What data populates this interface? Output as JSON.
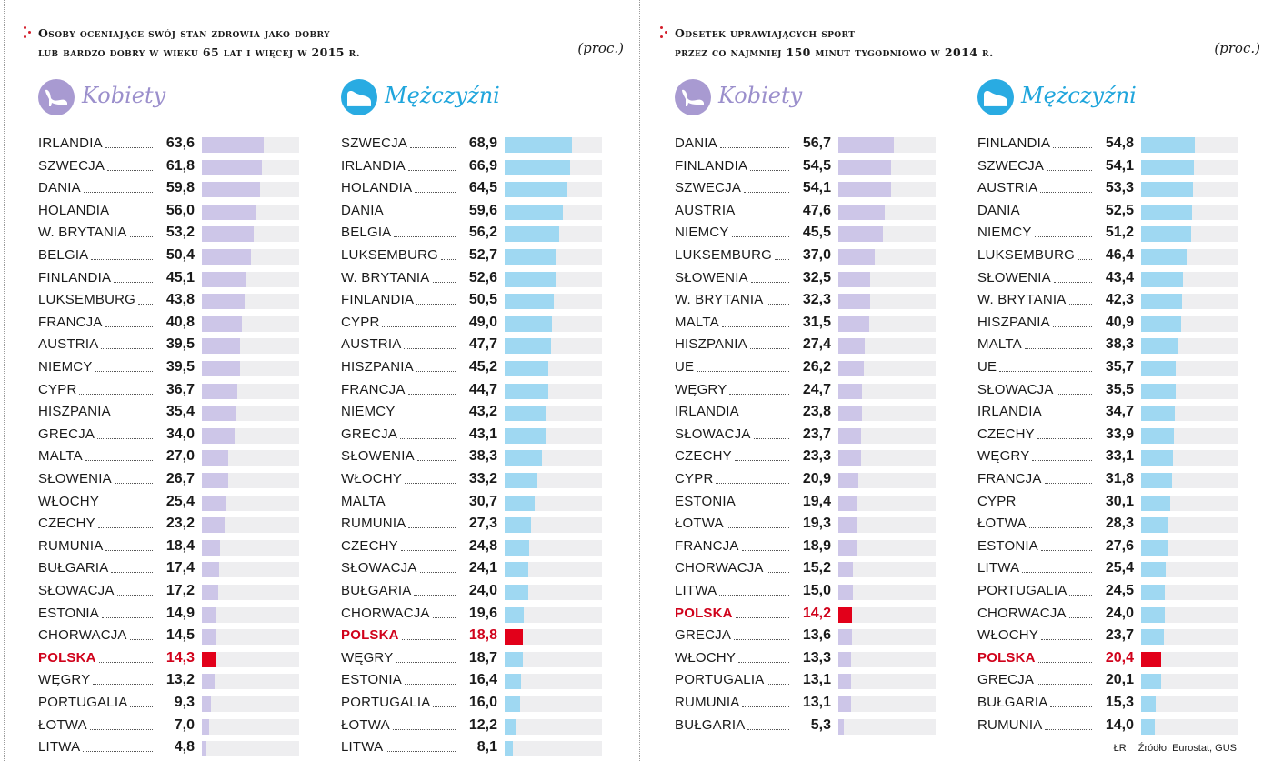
{
  "unit": "(proc.)",
  "colors": {
    "women_bar": "#cdc6e8",
    "men_bar": "#9fd8f2",
    "poland_bar": "#e2001a",
    "accent": "#d31e2a"
  },
  "footer": {
    "author": "ŁR",
    "source": "Źródło: Eurostat, GUS"
  },
  "chart_data": [
    {
      "type": "bar",
      "title": "Osoby oceniające swój stan zdrowia jako dobry lub bardzo dobry w wieku 65 lat i więcej w 2015 r.",
      "title_lines": [
        "Osoby oceniające swój stan zdrowia jako dobry",
        "lub bardzo dobry w wieku 65 lat i więcej w 2015 r."
      ],
      "unit": "(proc.)",
      "xlim": [
        0,
        100
      ],
      "highlight": "POLSKA",
      "series": [
        {
          "name": "Kobiety",
          "icon": "women-shoe-icon",
          "categories": [
            "IRLANDIA",
            "SZWECJA",
            "DANIA",
            "HOLANDIA",
            "W. BRYTANIA",
            "BELGIA",
            "FINLANDIA",
            "LUKSEMBURG",
            "FRANCJA",
            "AUSTRIA",
            "NIEMCY",
            "CYPR",
            "HISZPANIA",
            "GRECJA",
            "MALTA",
            "SŁOWENIA",
            "WŁOCHY",
            "CZECHY",
            "RUMUNIA",
            "BUŁGARIA",
            "SŁOWACJA",
            "ESTONIA",
            "CHORWACJA",
            "POLSKA",
            "WĘGRY",
            "PORTUGALIA",
            "ŁOTWA",
            "LITWA"
          ],
          "values": [
            63.6,
            61.8,
            59.8,
            56.0,
            53.2,
            50.4,
            45.1,
            43.8,
            40.8,
            39.5,
            39.5,
            36.7,
            35.4,
            34.0,
            27.0,
            26.7,
            25.4,
            23.2,
            18.4,
            17.4,
            17.2,
            14.9,
            14.5,
            14.3,
            13.2,
            9.3,
            7.0,
            4.8
          ],
          "labels": [
            "63,6",
            "61,8",
            "59,8",
            "56,0",
            "53,2",
            "50,4",
            "45,1",
            "43,8",
            "40,8",
            "39,5",
            "39,5",
            "36,7",
            "35,4",
            "34,0",
            "27,0",
            "26,7",
            "25,4",
            "23,2",
            "18,4",
            "17,4",
            "17,2",
            "14,9",
            "14,5",
            "14,3",
            "13,2",
            "9,3",
            "7,0",
            "4,8"
          ]
        },
        {
          "name": "Mężczyźni",
          "icon": "men-shoe-icon",
          "categories": [
            "SZWECJA",
            "IRLANDIA",
            "HOLANDIA",
            "DANIA",
            "BELGIA",
            "LUKSEMBURG",
            "W. BRYTANIA",
            "FINLANDIA",
            "CYPR",
            "AUSTRIA",
            "HISZPANIA",
            "FRANCJA",
            "NIEMCY",
            "GRECJA",
            "SŁOWENIA",
            "WŁOCHY",
            "MALTA",
            "RUMUNIA",
            "CZECHY",
            "SŁOWACJA",
            "BUŁGARIA",
            "CHORWACJA",
            "POLSKA",
            "WĘGRY",
            "ESTONIA",
            "PORTUGALIA",
            "ŁOTWA",
            "LITWA"
          ],
          "values": [
            68.9,
            66.9,
            64.5,
            59.6,
            56.2,
            52.7,
            52.6,
            50.5,
            49.0,
            47.7,
            45.2,
            44.7,
            43.2,
            43.1,
            38.3,
            33.2,
            30.7,
            27.3,
            24.8,
            24.1,
            24.0,
            19.6,
            18.8,
            18.7,
            16.4,
            16.0,
            12.2,
            8.1
          ],
          "labels": [
            "68,9",
            "66,9",
            "64,5",
            "59,6",
            "56,2",
            "52,7",
            "52,6",
            "50,5",
            "49,0",
            "47,7",
            "45,2",
            "44,7",
            "43,2",
            "43,1",
            "38,3",
            "33,2",
            "30,7",
            "27,3",
            "24,8",
            "24,1",
            "24,0",
            "19,6",
            "18,8",
            "18,7",
            "16,4",
            "16,0",
            "12,2",
            "8,1"
          ]
        }
      ]
    },
    {
      "type": "bar",
      "title": "Odsetek uprawiających sport przez co najmniej 150 minut tygodniowo w 2014 r.",
      "title_lines": [
        "Odsetek uprawiających sport",
        "przez co najmniej 150 minut tygodniowo w 2014 r."
      ],
      "unit": "(proc.)",
      "xlim": [
        0,
        100
      ],
      "highlight": "POLSKA",
      "series": [
        {
          "name": "Kobiety",
          "icon": "women-shoe-icon",
          "categories": [
            "DANIA",
            "FINLANDIA",
            "SZWECJA",
            "AUSTRIA",
            "NIEMCY",
            "LUKSEMBURG",
            "SŁOWENIA",
            "W. BRYTANIA",
            "MALTA",
            "HISZPANIA",
            "UE",
            "WĘGRY",
            "IRLANDIA",
            "SŁOWACJA",
            "CZECHY",
            "CYPR",
            "ESTONIA",
            "ŁOTWA",
            "FRANCJA",
            "CHORWACJA",
            "LITWA",
            "POLSKA",
            "GRECJA",
            "WŁOCHY",
            "PORTUGALIA",
            "RUMUNIA",
            "BUŁGARIA"
          ],
          "values": [
            56.7,
            54.5,
            54.1,
            47.6,
            45.5,
            37.0,
            32.5,
            32.3,
            31.5,
            27.4,
            26.2,
            24.7,
            23.8,
            23.7,
            23.3,
            20.9,
            19.4,
            19.3,
            18.9,
            15.2,
            15.0,
            14.2,
            13.6,
            13.3,
            13.1,
            13.1,
            5.3
          ],
          "labels": [
            "56,7",
            "54,5",
            "54,1",
            "47,6",
            "45,5",
            "37,0",
            "32,5",
            "32,3",
            "31,5",
            "27,4",
            "26,2",
            "24,7",
            "23,8",
            "23,7",
            "23,3",
            "20,9",
            "19,4",
            "19,3",
            "18,9",
            "15,2",
            "15,0",
            "14,2",
            "13,6",
            "13,3",
            "13,1",
            "13,1",
            "5,3"
          ]
        },
        {
          "name": "Mężczyźni",
          "icon": "men-shoe-icon",
          "categories": [
            "FINLANDIA",
            "SZWECJA",
            "AUSTRIA",
            "DANIA",
            "NIEMCY",
            "LUKSEMBURG",
            "SŁOWENIA",
            "W. BRYTANIA",
            "HISZPANIA",
            "MALTA",
            "UE",
            "SŁOWACJA",
            "IRLANDIA",
            "CZECHY",
            "WĘGRY",
            "FRANCJA",
            "CYPR",
            "ŁOTWA",
            "ESTONIA",
            "LITWA",
            "PORTUGALIA",
            "CHORWACJA",
            "WŁOCHY",
            "POLSKA",
            "GRECJA",
            "BUŁGARIA",
            "RUMUNIA"
          ],
          "values": [
            54.8,
            54.1,
            53.3,
            52.5,
            51.2,
            46.4,
            43.4,
            42.3,
            40.9,
            38.3,
            35.7,
            35.5,
            34.7,
            33.9,
            33.1,
            31.8,
            30.1,
            28.3,
            27.6,
            25.4,
            24.5,
            24.0,
            23.7,
            20.4,
            20.1,
            15.3,
            14.0
          ],
          "labels": [
            "54,8",
            "54,1",
            "53,3",
            "52,5",
            "51,2",
            "46,4",
            "43,4",
            "42,3",
            "40,9",
            "38,3",
            "35,7",
            "35,5",
            "34,7",
            "33,9",
            "33,1",
            "31,8",
            "30,1",
            "28,3",
            "27,6",
            "25,4",
            "24,5",
            "24,0",
            "23,7",
            "20,4",
            "20,1",
            "15,3",
            "14,0"
          ]
        }
      ]
    }
  ]
}
